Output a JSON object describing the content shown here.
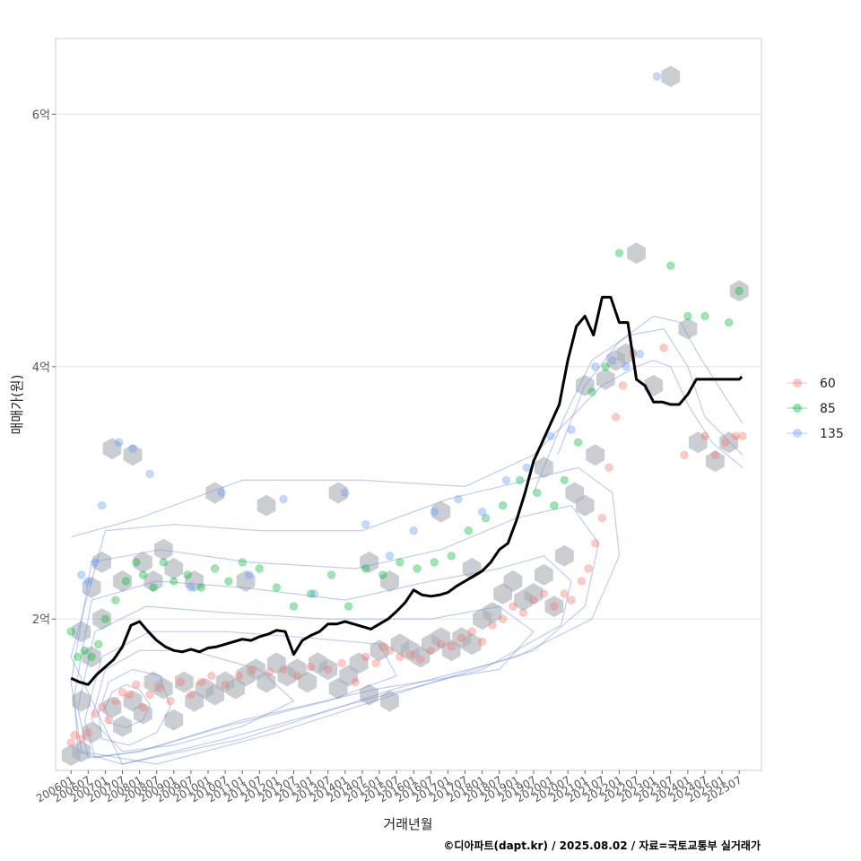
{
  "chart_data": {
    "type": "scatter",
    "title": "",
    "xlabel": "거래년월",
    "ylabel": "매매가(원)",
    "caption": "©디아파트(dapt.kr) / 2025.08.02 / 자료=국토교통부 실거래가",
    "x_tick_labels": [
      "200601",
      "200607",
      "200701",
      "200707",
      "200801",
      "200807",
      "200901",
      "200907",
      "201001",
      "201007",
      "201101",
      "201107",
      "201201",
      "201207",
      "201301",
      "201307",
      "201401",
      "201407",
      "201501",
      "201507",
      "201601",
      "201607",
      "201701",
      "201707",
      "201801",
      "201807",
      "201901",
      "201907",
      "202001",
      "202007",
      "202101",
      "202107",
      "202201",
      "202207",
      "202301",
      "202307",
      "202401",
      "202407",
      "202501",
      "202507"
    ],
    "y_ticks": [
      {
        "value": 2,
        "label": "2억"
      },
      {
        "value": 4,
        "label": "4억"
      },
      {
        "value": 6,
        "label": "6억"
      }
    ],
    "ylim": [
      0.8,
      6.6
    ],
    "xlim": [
      2005.55,
      2026.15
    ],
    "grid": true,
    "legend_position": "right",
    "legend": [
      {
        "name": "60",
        "color": "#F8766D"
      },
      {
        "name": "85",
        "color": "#00BA38"
      },
      {
        "name": "135",
        "color": "#619CFF"
      }
    ],
    "median_line_color": "#000000",
    "hex_color": "#a9b0b7",
    "contour_color": "#6f8fe0",
    "median_line": {
      "x": [
        2006.0,
        2006.25,
        2006.5,
        2006.75,
        2007.0,
        2007.25,
        2007.5,
        2007.75,
        2008.0,
        2008.25,
        2008.5,
        2008.75,
        2009.0,
        2009.25,
        2009.5,
        2009.75,
        2010.0,
        2010.25,
        2010.5,
        2010.75,
        2011.0,
        2011.25,
        2011.5,
        2011.75,
        2012.0,
        2012.25,
        2012.5,
        2012.75,
        2013.0,
        2013.25,
        2013.5,
        2013.75,
        2014.0,
        2014.25,
        2014.5,
        2014.75,
        2015.0,
        2015.25,
        2015.5,
        2015.75,
        2016.0,
        2016.25,
        2016.5,
        2016.75,
        2017.0,
        2017.25,
        2017.5,
        2017.75,
        2018.0,
        2018.25,
        2018.5,
        2018.75,
        2019.0,
        2019.25,
        2019.5,
        2019.75,
        2020.0,
        2020.25,
        2020.5,
        2020.75,
        2021.0,
        2021.25,
        2021.5,
        2021.75,
        2022.0,
        2022.25,
        2022.5,
        2022.75,
        2023.0,
        2023.25,
        2023.5,
        2023.75,
        2024.0,
        2024.25,
        2024.5,
        2024.75,
        2025.0,
        2025.25,
        2025.5,
        2025.58
      ],
      "y": [
        1.53,
        1.5,
        1.48,
        1.56,
        1.62,
        1.68,
        1.78,
        1.95,
        1.98,
        1.9,
        1.83,
        1.78,
        1.75,
        1.74,
        1.76,
        1.74,
        1.77,
        1.78,
        1.8,
        1.82,
        1.84,
        1.83,
        1.86,
        1.88,
        1.91,
        1.9,
        1.72,
        1.83,
        1.87,
        1.9,
        1.96,
        1.96,
        1.98,
        1.96,
        1.94,
        1.92,
        1.96,
        2.0,
        2.06,
        2.13,
        2.23,
        2.19,
        2.18,
        2.19,
        2.21,
        2.26,
        2.3,
        2.34,
        2.38,
        2.45,
        2.55,
        2.6,
        2.78,
        3.0,
        3.25,
        3.4,
        3.55,
        3.7,
        4.05,
        4.32,
        4.4,
        4.25,
        4.55,
        4.55,
        4.35,
        4.35,
        3.9,
        3.85,
        3.72,
        3.72,
        3.7,
        3.7,
        3.78,
        3.9,
        3.9,
        3.9,
        3.9,
        3.9,
        3.9,
        3.92
      ]
    },
    "series": [
      {
        "name": "60",
        "x": [
          2006.0,
          2006.1,
          2006.3,
          2006.5,
          2006.7,
          2006.9,
          2007.1,
          2007.3,
          2007.5,
          2007.7,
          2007.9,
          2008.1,
          2008.3,
          2008.6,
          2008.9,
          2009.2,
          2009.5,
          2009.8,
          2010.1,
          2010.5,
          2010.9,
          2011.3,
          2011.8,
          2012.2,
          2012.6,
          2013.0,
          2013.5,
          2013.9,
          2014.3,
          2014.6,
          2014.9,
          2015.1,
          2015.3,
          2015.6,
          2015.9,
          2016.2,
          2016.5,
          2016.8,
          2017.1,
          2017.4,
          2017.7,
          2018.0,
          2018.3,
          2018.6,
          2018.9,
          2019.2,
          2019.5,
          2019.8,
          2020.1,
          2020.4,
          2020.6,
          2020.9,
          2021.1,
          2021.3,
          2021.5,
          2021.7,
          2021.9,
          2022.1,
          2022.4,
          2023.3,
          2023.9,
          2024.5,
          2024.8,
          2025.1,
          2025.4,
          2025.6
        ],
        "y": [
          1.02,
          1.08,
          1.05,
          1.1,
          1.25,
          1.3,
          1.2,
          1.35,
          1.42,
          1.4,
          1.48,
          1.3,
          1.4,
          1.45,
          1.35,
          1.5,
          1.4,
          1.5,
          1.55,
          1.48,
          1.55,
          1.6,
          1.58,
          1.6,
          1.55,
          1.62,
          1.6,
          1.65,
          1.5,
          1.7,
          1.65,
          1.78,
          1.75,
          1.7,
          1.72,
          1.68,
          1.75,
          1.8,
          1.78,
          1.85,
          1.9,
          1.82,
          1.95,
          2.0,
          2.1,
          2.05,
          2.15,
          2.2,
          2.1,
          2.2,
          2.15,
          2.3,
          2.4,
          2.6,
          2.8,
          3.2,
          3.6,
          3.85,
          4.1,
          4.15,
          3.3,
          3.45,
          3.3,
          3.4,
          3.45,
          3.45
        ]
      },
      {
        "name": "85",
        "x": [
          2006.0,
          2006.2,
          2006.4,
          2006.6,
          2006.8,
          2007.0,
          2007.3,
          2007.6,
          2007.9,
          2008.1,
          2008.4,
          2008.7,
          2009.0,
          2009.4,
          2009.8,
          2010.2,
          2010.6,
          2011.0,
          2011.5,
          2012.0,
          2012.5,
          2013.0,
          2013.6,
          2014.1,
          2014.6,
          2015.1,
          2015.6,
          2016.1,
          2016.6,
          2017.1,
          2017.6,
          2018.1,
          2018.6,
          2019.1,
          2019.6,
          2020.1,
          2020.4,
          2020.8,
          2021.2,
          2021.6,
          2022.0,
          2023.5,
          2024.0,
          2024.5,
          2025.2,
          2025.5
        ],
        "y": [
          1.9,
          1.7,
          1.75,
          1.7,
          1.8,
          2.0,
          2.15,
          2.3,
          2.45,
          2.35,
          2.25,
          2.45,
          2.3,
          2.35,
          2.25,
          2.4,
          2.3,
          2.45,
          2.4,
          2.25,
          2.1,
          2.2,
          2.35,
          2.1,
          2.4,
          2.35,
          2.45,
          2.4,
          2.45,
          2.5,
          2.7,
          2.8,
          2.9,
          3.1,
          3.0,
          2.9,
          3.1,
          3.4,
          3.8,
          4.0,
          4.9,
          4.8,
          4.4,
          4.4,
          4.35,
          4.6
        ]
      },
      {
        "name": "135",
        "x": [
          2006.3,
          2006.5,
          2006.7,
          2006.9,
          2007.4,
          2007.8,
          2008.3,
          2009.5,
          2010.4,
          2011.2,
          2012.2,
          2013.1,
          2014.0,
          2014.6,
          2015.3,
          2016.0,
          2016.6,
          2017.3,
          2018.0,
          2018.7,
          2019.3,
          2020.0,
          2020.6,
          2021.3,
          2021.8,
          2022.2,
          2022.6,
          2023.1
        ],
        "y": [
          2.35,
          2.3,
          2.45,
          2.9,
          3.4,
          3.35,
          3.15,
          2.25,
          3.0,
          2.35,
          2.95,
          2.2,
          3.0,
          2.75,
          2.5,
          2.7,
          2.85,
          2.95,
          2.85,
          3.1,
          3.2,
          3.45,
          3.5,
          4.0,
          4.05,
          4.0,
          4.1,
          6.3
        ]
      }
    ],
    "hexbins": {
      "x": [
        2006.0,
        2006.3,
        2006.3,
        2006.3,
        2006.6,
        2006.6,
        2006.6,
        2006.9,
        2006.9,
        2007.2,
        2007.2,
        2007.5,
        2007.5,
        2007.8,
        2007.8,
        2008.1,
        2008.1,
        2008.4,
        2008.4,
        2008.7,
        2008.7,
        2009.0,
        2009.0,
        2009.3,
        2009.6,
        2009.6,
        2009.9,
        2010.2,
        2010.2,
        2010.5,
        2010.8,
        2011.1,
        2011.1,
        2011.4,
        2011.7,
        2011.7,
        2012.0,
        2012.3,
        2012.6,
        2012.9,
        2013.2,
        2013.5,
        2013.8,
        2013.8,
        2014.1,
        2014.4,
        2014.7,
        2014.7,
        2015.0,
        2015.3,
        2015.3,
        2015.6,
        2015.9,
        2016.2,
        2016.5,
        2016.8,
        2016.8,
        2017.1,
        2017.4,
        2017.7,
        2017.7,
        2018.0,
        2018.3,
        2018.6,
        2018.9,
        2019.2,
        2019.5,
        2019.8,
        2019.8,
        2020.1,
        2020.4,
        2020.7,
        2021.0,
        2021.0,
        2021.3,
        2021.6,
        2021.9,
        2022.2,
        2022.5,
        2023.0,
        2023.5,
        2024.0,
        2024.3,
        2024.8,
        2025.2,
        2025.5
      ],
      "y": [
        0.92,
        0.95,
        1.35,
        1.9,
        1.1,
        1.7,
        2.25,
        2.0,
        2.45,
        1.3,
        3.35,
        1.15,
        2.3,
        1.35,
        3.3,
        1.25,
        2.45,
        1.5,
        2.3,
        1.45,
        2.55,
        1.2,
        2.4,
        1.5,
        1.35,
        2.3,
        1.45,
        1.4,
        3.0,
        1.5,
        1.45,
        1.55,
        2.3,
        1.6,
        1.5,
        2.9,
        1.65,
        1.55,
        1.6,
        1.5,
        1.65,
        1.6,
        1.45,
        3.0,
        1.55,
        1.65,
        1.4,
        2.45,
        1.75,
        1.35,
        2.3,
        1.8,
        1.75,
        1.7,
        1.8,
        1.85,
        2.85,
        1.75,
        1.85,
        1.8,
        2.4,
        2.0,
        2.05,
        2.2,
        2.3,
        2.15,
        2.2,
        2.35,
        3.2,
        2.1,
        2.5,
        3.0,
        2.9,
        3.85,
        3.3,
        3.9,
        4.05,
        4.1,
        4.9,
        3.85,
        6.3,
        4.3,
        3.4,
        3.25,
        3.4,
        4.6
      ]
    },
    "density_contours": [
      {
        "x": [
          2007.0,
          2007.2,
          2007.6,
          2008.0,
          2008.3,
          2008.1,
          2007.6,
          2007.1,
          2007.0
        ],
        "y": [
          1.3,
          1.42,
          1.48,
          1.44,
          1.32,
          1.2,
          1.14,
          1.18,
          1.3
        ]
      },
      {
        "x": [
          2006.8,
          2007.1,
          2007.8,
          2008.6,
          2008.9,
          2008.5,
          2007.7,
          2006.9,
          2006.8
        ],
        "y": [
          1.25,
          1.5,
          1.6,
          1.55,
          1.3,
          1.1,
          1.0,
          1.05,
          1.25
        ]
      },
      {
        "x": [
          2006.6,
          2007.0,
          2008.0,
          2009.5,
          2011.5,
          2012.5,
          2011.0,
          2009.0,
          2007.5,
          2006.6
        ],
        "y": [
          1.2,
          1.6,
          1.75,
          1.75,
          1.6,
          1.35,
          1.15,
          1.0,
          0.95,
          1.2
        ]
      },
      {
        "x": [
          2006.4,
          2006.9,
          2008.3,
          2010.5,
          2013.0,
          2015.0,
          2015.5,
          2013.5,
          2010.5,
          2008.0,
          2006.7,
          2006.4
        ],
        "y": [
          1.2,
          1.7,
          1.9,
          1.9,
          1.85,
          1.8,
          1.55,
          1.35,
          1.15,
          0.95,
          0.9,
          1.2
        ]
      },
      {
        "x": [
          2006.2,
          2006.7,
          2008.2,
          2010.5,
          2013.5,
          2016.5,
          2018.5,
          2019.5,
          2018.5,
          2015.0,
          2011.0,
          2008.0,
          2006.5,
          2006.2
        ],
        "y": [
          1.3,
          1.9,
          2.1,
          2.05,
          2.0,
          2.0,
          2.1,
          1.9,
          1.6,
          1.45,
          1.2,
          0.95,
          0.9,
          1.3
        ]
      },
      {
        "x": [
          2006.1,
          2006.6,
          2008.5,
          2011.0,
          2014.0,
          2016.5,
          2018.5,
          2019.8,
          2020.6,
          2020.3,
          2018.0,
          2014.5,
          2010.5,
          2007.5,
          2006.2,
          2006.1
        ],
        "y": [
          1.4,
          2.15,
          2.3,
          2.25,
          2.15,
          2.3,
          2.4,
          2.5,
          2.3,
          1.95,
          1.6,
          1.35,
          1.05,
          0.85,
          0.95,
          1.4
        ]
      },
      {
        "x": [
          2006.0,
          2006.6,
          2008.6,
          2011.2,
          2014.3,
          2016.8,
          2019.0,
          2020.6,
          2021.4,
          2021.0,
          2019.5,
          2016.0,
          2012.0,
          2008.5,
          2006.3,
          2006.0
        ],
        "y": [
          1.5,
          2.45,
          2.55,
          2.45,
          2.4,
          2.55,
          2.8,
          2.9,
          2.6,
          2.1,
          1.75,
          1.45,
          1.1,
          0.85,
          0.95,
          1.5
        ]
      },
      {
        "x": [
          2006.0,
          2007.0,
          2009.0,
          2011.5,
          2014.5,
          2017.0,
          2019.3,
          2020.8,
          2021.8,
          2022.0,
          2021.2,
          2019.0,
          2015.5,
          2011.0,
          2007.5,
          2006.0
        ],
        "y": [
          1.7,
          2.7,
          2.75,
          2.7,
          2.7,
          2.95,
          3.1,
          3.2,
          3.0,
          2.5,
          2.0,
          1.7,
          1.45,
          1.05,
          0.85,
          1.7
        ]
      },
      {
        "x": [
          2006.0,
          2008.0,
          2011.0,
          2014.5,
          2017.5,
          2019.5,
          2020.6,
          2021.5,
          2022.5,
          2023.0,
          2023.5,
          2024.0,
          2024.7,
          2025.6
        ],
        "y": [
          2.65,
          2.8,
          3.1,
          3.1,
          3.05,
          3.3,
          3.6,
          3.85,
          4.0,
          4.05,
          4.0,
          3.7,
          3.4,
          3.2
        ]
      },
      {
        "x": [
          2019.5,
          2020.4,
          2021.2,
          2022.3,
          2023.3,
          2024.0,
          2024.5,
          2025.6
        ],
        "y": [
          3.0,
          3.6,
          4.05,
          4.25,
          4.3,
          4.0,
          3.6,
          3.3
        ]
      },
      {
        "x": [
          2020.2,
          2021.0,
          2022.0,
          2023.0,
          2023.8,
          2024.3,
          2025.0,
          2025.6
        ],
        "y": [
          3.3,
          3.85,
          4.2,
          4.4,
          4.35,
          4.1,
          3.8,
          3.55
        ]
      }
    ]
  }
}
